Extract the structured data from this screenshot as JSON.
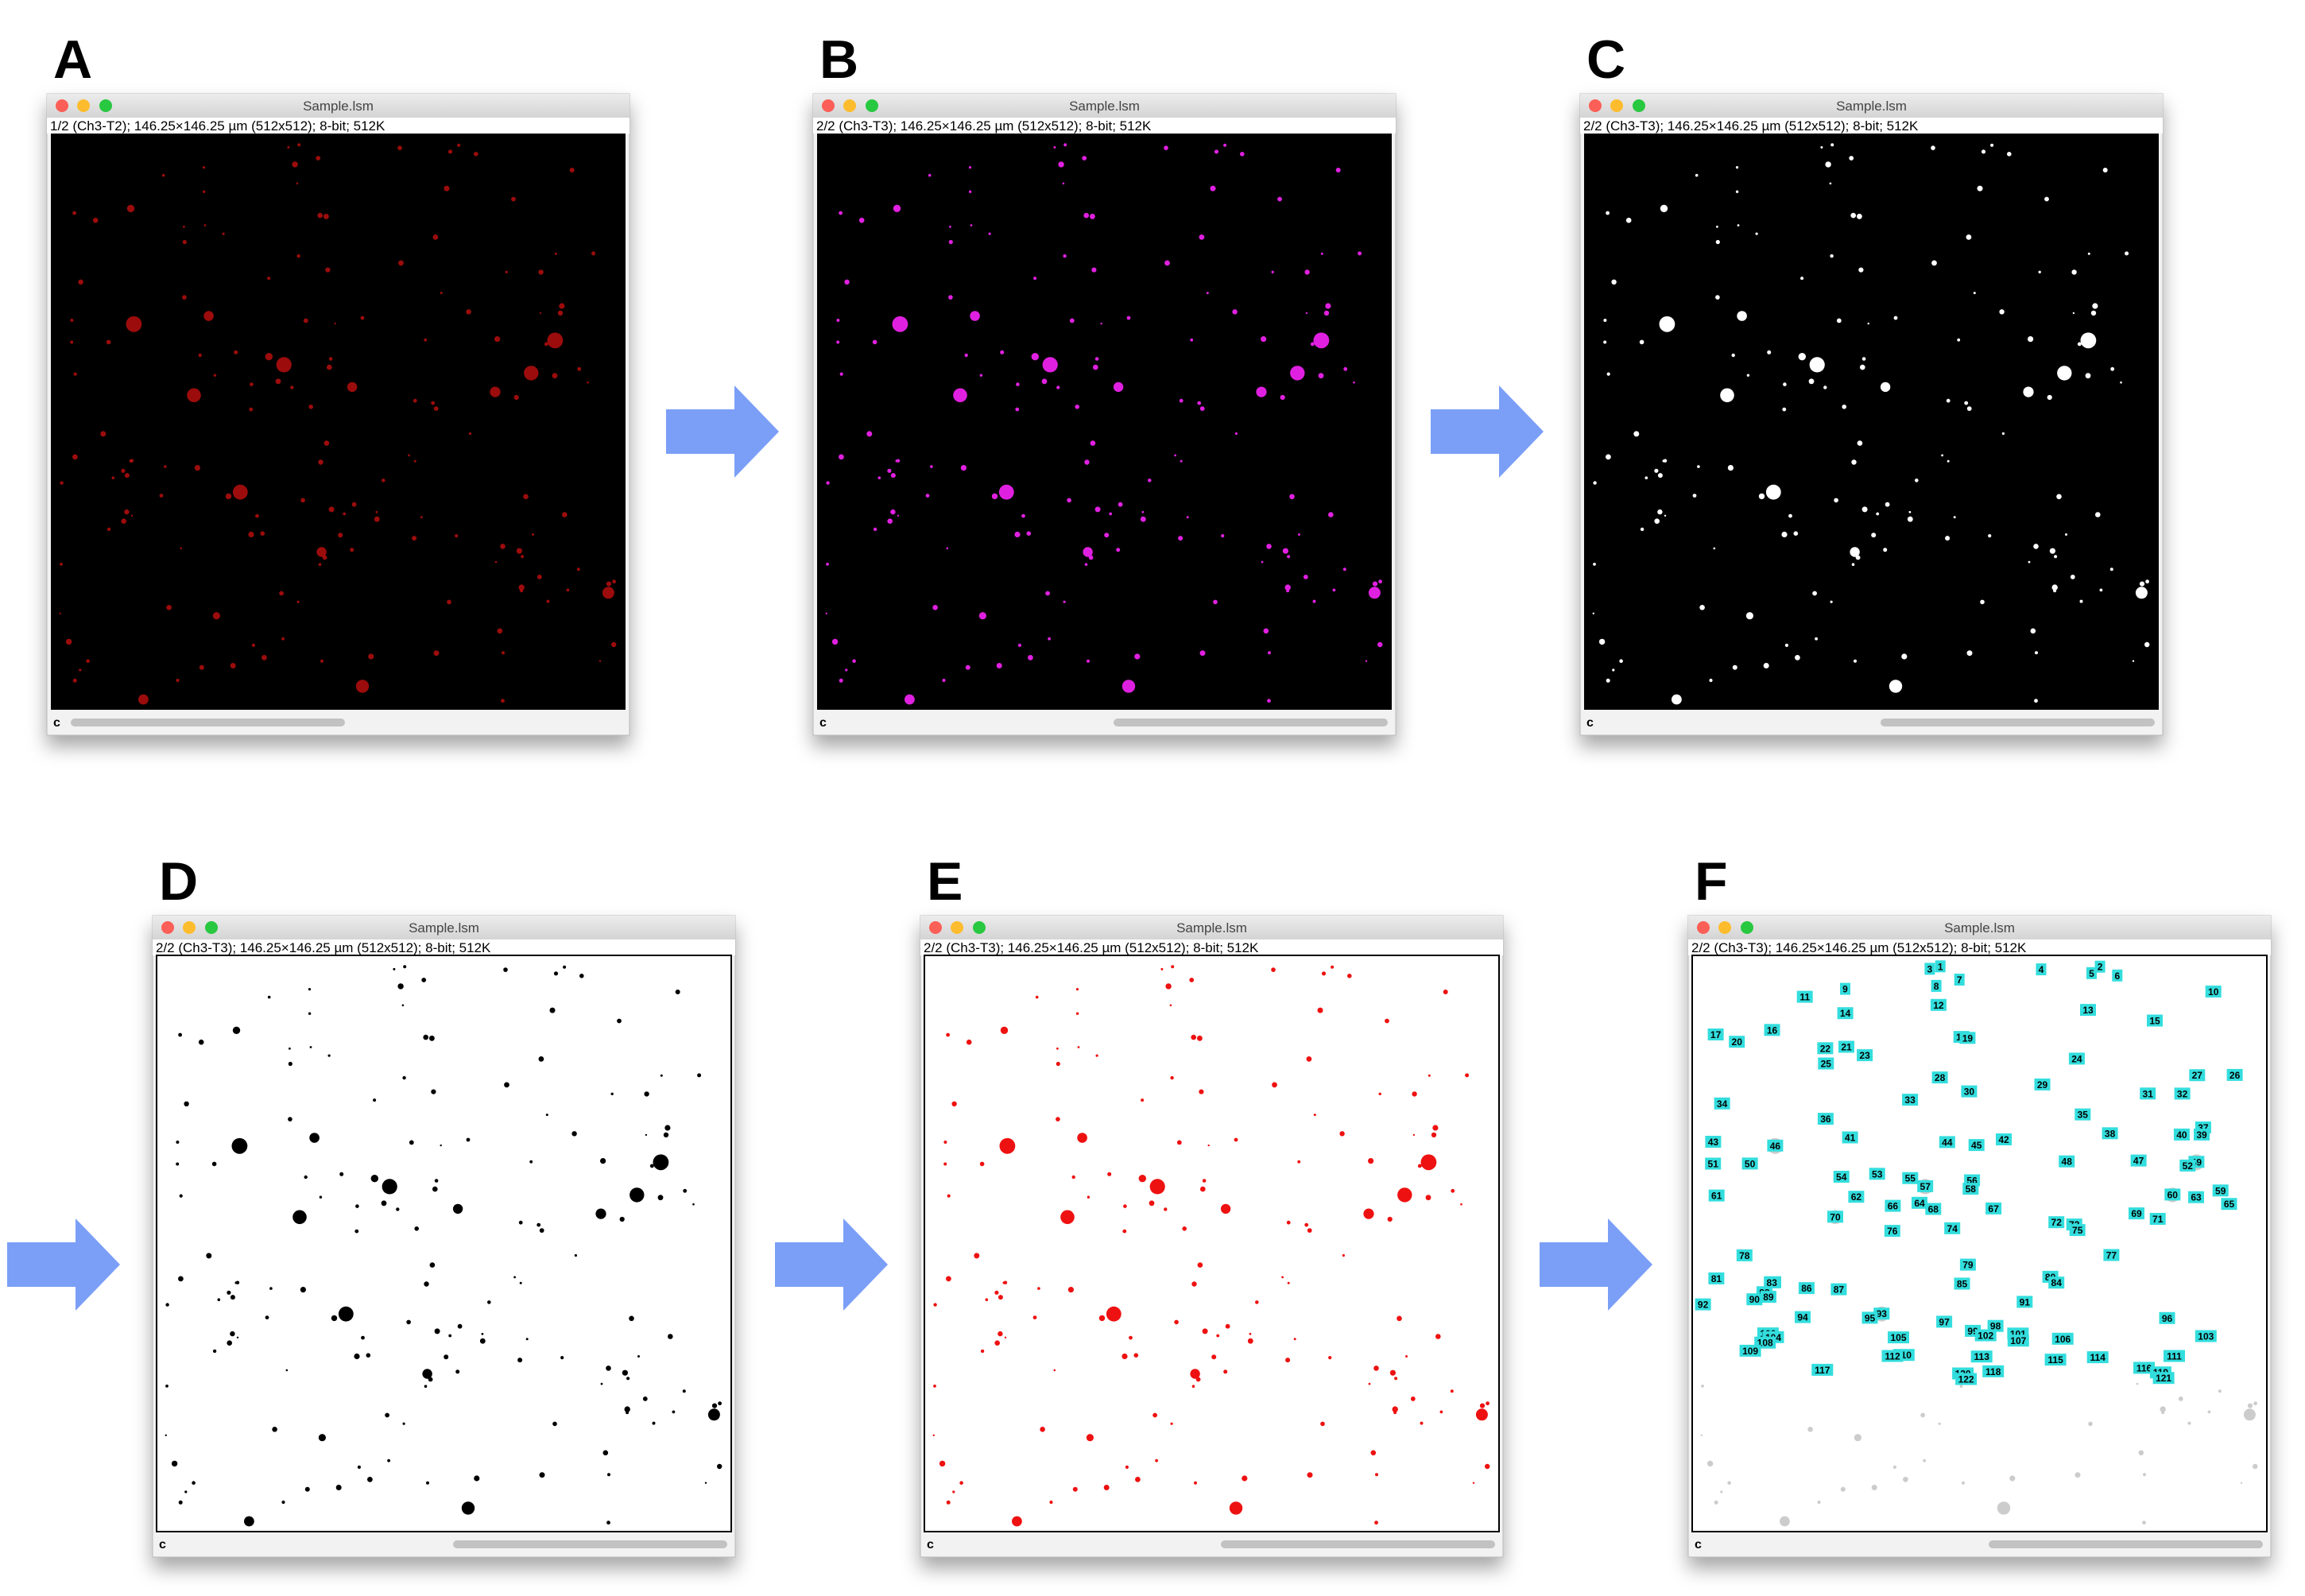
{
  "panels": [
    {
      "label": "A",
      "window_title": "Sample.lsm",
      "info": "1/2 (Ch3-T2); 146.25×146.25 µm (512x512); 8-bit; 512K",
      "channel": "c"
    },
    {
      "label": "B",
      "window_title": "Sample.lsm",
      "info": "2/2 (Ch3-T3); 146.25×146.25 µm (512x512); 8-bit; 512K",
      "channel": "c"
    },
    {
      "label": "C",
      "window_title": "Sample.lsm",
      "info": "2/2 (Ch3-T3); 146.25×146.25 µm (512x512); 8-bit; 512K",
      "channel": "c"
    },
    {
      "label": "D",
      "window_title": "Sample.lsm",
      "info": "2/2 (Ch3-T3); 146.25×146.25 µm (512x512); 8-bit; 512K",
      "channel": "c"
    },
    {
      "label": "E",
      "window_title": "Sample.lsm",
      "info": "2/2 (Ch3-T3); 146.25×146.25 µm (512x512); 8-bit; 512K",
      "channel": "c"
    },
    {
      "label": "F",
      "window_title": "Sample.lsm",
      "info": "2/2 (Ch3-T3); 146.25×146.25 µm (512x512); 8-bit; 512K",
      "channel": "c"
    }
  ],
  "roi_labels": [
    "1",
    "2",
    "3",
    "4",
    "5",
    "6",
    "7",
    "8",
    "9",
    "10",
    "11",
    "12",
    "13",
    "14",
    "15",
    "16",
    "17",
    "18",
    "19",
    "20",
    "21",
    "22",
    "23",
    "24",
    "25",
    "26",
    "27",
    "28",
    "29",
    "30",
    "31",
    "32",
    "33",
    "34",
    "35",
    "36",
    "37",
    "38",
    "39",
    "40",
    "41",
    "42",
    "43",
    "44",
    "45",
    "46",
    "47",
    "48",
    "49",
    "50",
    "51",
    "52",
    "53",
    "54",
    "55",
    "56",
    "57",
    "58",
    "59",
    "60",
    "61",
    "62",
    "63",
    "64",
    "65",
    "66",
    "67",
    "68",
    "69",
    "70",
    "71",
    "72",
    "73",
    "74",
    "75",
    "76",
    "77",
    "78",
    "79",
    "80",
    "81",
    "82",
    "83",
    "84",
    "85",
    "86",
    "87",
    "88",
    "89",
    "90",
    "91",
    "92",
    "93",
    "94",
    "95",
    "96",
    "97",
    "98",
    "99",
    "100",
    "101",
    "102",
    "103",
    "104",
    "105",
    "106",
    "107",
    "108",
    "109",
    "110",
    "111",
    "112",
    "113",
    "114",
    "115",
    "116",
    "117",
    "118",
    "119",
    "120",
    "121",
    "122"
  ]
}
